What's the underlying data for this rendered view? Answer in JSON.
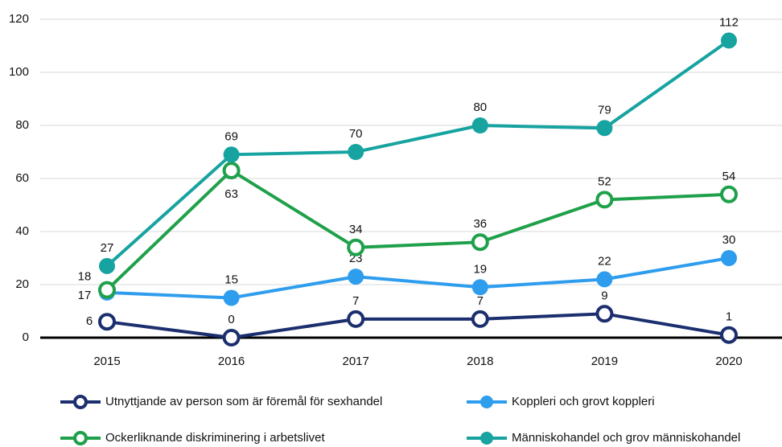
{
  "chart_data": {
    "type": "line",
    "categories": [
      "2015",
      "2016",
      "2017",
      "2018",
      "2019",
      "2020"
    ],
    "series": [
      {
        "name": "Utnyttjande av person som är föremål för sexhandel",
        "color": "#1b2e6e",
        "marker": "hollow",
        "values": [
          6,
          0,
          7,
          7,
          9,
          1
        ]
      },
      {
        "name": "Koppleri och grovt koppleri",
        "color": "#2f9ded",
        "marker": "filled",
        "values": [
          17,
          15,
          23,
          19,
          22,
          30
        ]
      },
      {
        "name": "Ockerliknande diskriminering i arbetslivet",
        "color": "#1fa04a",
        "marker": "hollow",
        "values": [
          18,
          63,
          34,
          36,
          52,
          54
        ]
      },
      {
        "name": "Människohandel och grov människohandel",
        "color": "#17a3a0",
        "marker": "filled",
        "values": [
          27,
          69,
          70,
          80,
          79,
          112
        ]
      }
    ],
    "ylim": [
      0,
      120
    ],
    "yticks": [
      0,
      20,
      40,
      60,
      80,
      100,
      120
    ],
    "grid": true
  }
}
